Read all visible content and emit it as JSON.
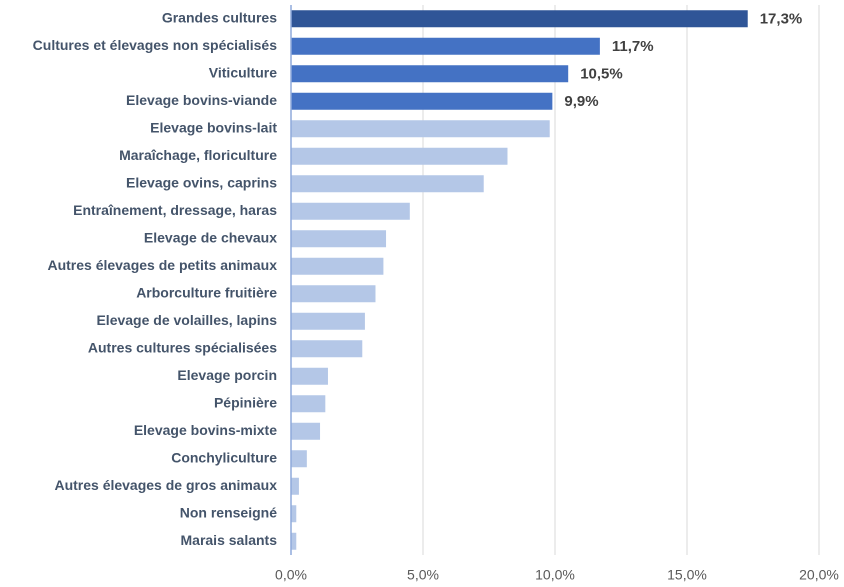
{
  "chart_data": {
    "type": "bar",
    "orientation": "horizontal",
    "categories": [
      "Grandes cultures",
      "Cultures et élevages non spécialisés",
      "Viticulture",
      "Elevage bovins-viande",
      "Elevage bovins-lait",
      "Maraîchage, floriculture",
      "Elevage ovins, caprins",
      "Entraînement, dressage, haras",
      "Elevage de chevaux",
      "Autres élevages de petits animaux",
      "Arborculture fruitière",
      "Elevage de volailles, lapins",
      "Autres cultures spécialisées",
      "Elevage porcin",
      "Pépinière",
      "Elevage bovins-mixte",
      "Conchyliculture",
      "Autres élevages de gros animaux",
      "Non renseigné",
      "Marais salants"
    ],
    "values": [
      17.3,
      11.7,
      10.5,
      9.9,
      9.8,
      8.2,
      7.3,
      4.5,
      3.6,
      3.5,
      3.2,
      2.8,
      2.7,
      1.4,
      1.3,
      1.1,
      0.6,
      0.3,
      0.2,
      0.2
    ],
    "value_labels": [
      "17,3%",
      "11,7%",
      "10,5%",
      "9,9%",
      null,
      null,
      null,
      null,
      null,
      null,
      null,
      null,
      null,
      null,
      null,
      null,
      null,
      null,
      null,
      null
    ],
    "colors": [
      "#2f5597",
      "#4472c4",
      "#4472c4",
      "#4472c4",
      "#b4c7e7",
      "#b4c7e7",
      "#b4c7e7",
      "#b4c7e7",
      "#b4c7e7",
      "#b4c7e7",
      "#b4c7e7",
      "#b4c7e7",
      "#b4c7e7",
      "#b4c7e7",
      "#b4c7e7",
      "#b4c7e7",
      "#b4c7e7",
      "#b4c7e7",
      "#b4c7e7",
      "#b4c7e7"
    ],
    "xlim": [
      0,
      20
    ],
    "xticks": [
      {
        "value": 0,
        "label": "0,0%"
      },
      {
        "value": 5,
        "label": "5,0%"
      },
      {
        "value": 10,
        "label": "10,0%"
      },
      {
        "value": 15,
        "label": "15,0%"
      },
      {
        "value": 20,
        "label": "20,0%"
      }
    ],
    "grid": true
  }
}
